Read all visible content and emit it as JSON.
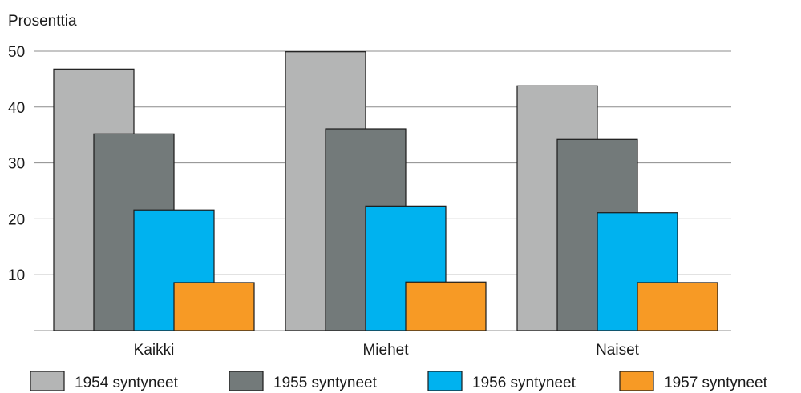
{
  "chart_data": {
    "type": "bar",
    "ylabel": "Prosenttia",
    "ylim": [
      0,
      50
    ],
    "yticks": [
      10,
      20,
      30,
      40,
      50
    ],
    "categories": [
      "Kaikki",
      "Miehet",
      "Naiset"
    ],
    "series": [
      {
        "name": "1954 syntyneet",
        "color": "#b4b5b5",
        "values": [
          46.8,
          49.9,
          43.8
        ]
      },
      {
        "name": "1955 syntyneet",
        "color": "#737a7a",
        "values": [
          35.2,
          36.1,
          34.2
        ]
      },
      {
        "name": "1956 syntyneet",
        "color": "#00b2ef",
        "values": [
          21.6,
          22.3,
          21.1
        ]
      },
      {
        "name": "1957 syntyneet",
        "color": "#f79a25",
        "values": [
          8.6,
          8.7,
          8.6
        ]
      }
    ],
    "grid": true,
    "legend": "bottom"
  }
}
